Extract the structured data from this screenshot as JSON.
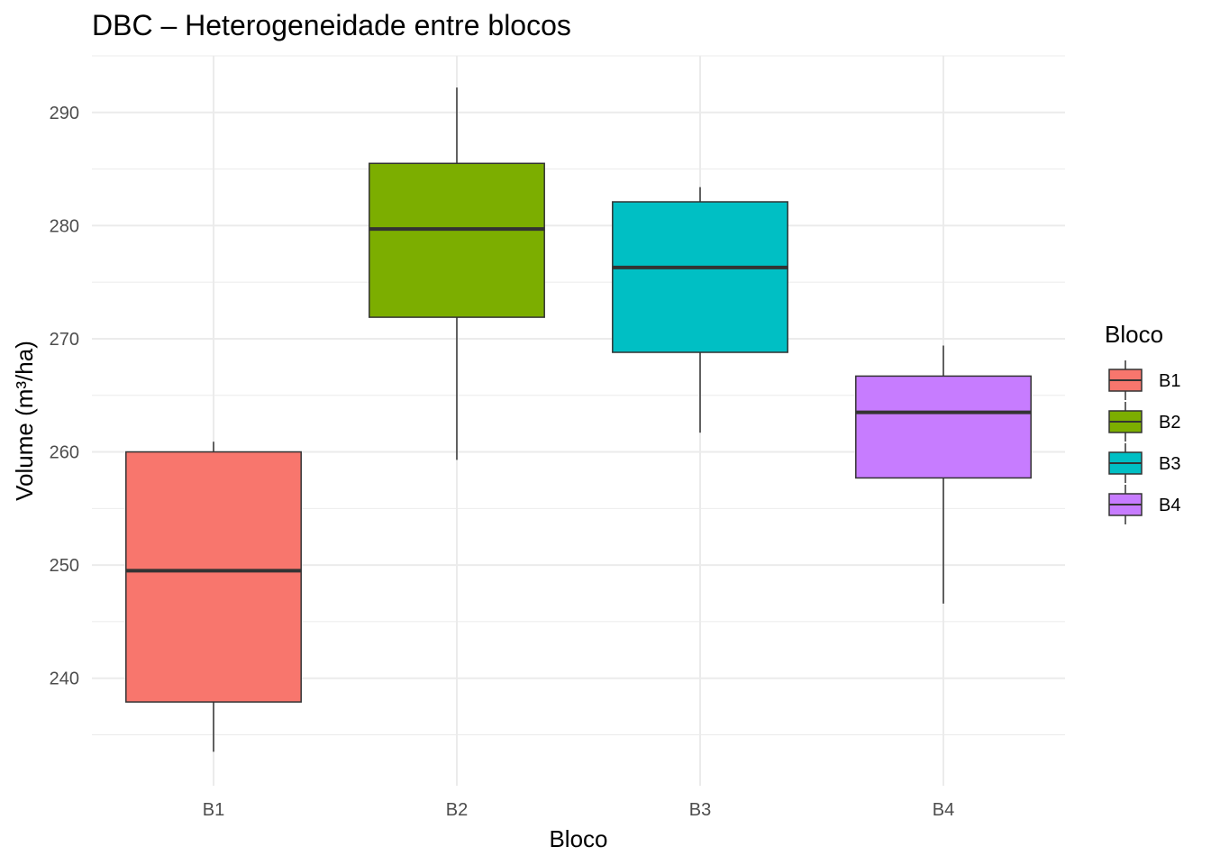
{
  "chart_data": {
    "type": "boxplot",
    "title": "DBC – Heterogeneidade entre blocos",
    "xlabel": "Bloco",
    "ylabel": "Volume (m³/ha)",
    "ylim": [
      230.5,
      295
    ],
    "y_ticks": [
      240,
      250,
      260,
      270,
      280,
      290
    ],
    "categories": [
      "B1",
      "B2",
      "B3",
      "B4"
    ],
    "boxes": [
      {
        "category": "B1",
        "whisker_low": 233.5,
        "q1": 237.9,
        "median": 249.5,
        "q3": 260.0,
        "whisker_high": 260.9,
        "color": "#F8766D"
      },
      {
        "category": "B2",
        "whisker_low": 259.3,
        "q1": 271.9,
        "median": 279.7,
        "q3": 285.5,
        "whisker_high": 292.2,
        "color": "#7CAE00"
      },
      {
        "category": "B3",
        "whisker_low": 261.7,
        "q1": 268.8,
        "median": 276.3,
        "q3": 282.1,
        "whisker_high": 283.4,
        "color": "#00BFC4"
      },
      {
        "category": "B4",
        "whisker_low": 246.6,
        "q1": 257.7,
        "median": 263.5,
        "q3": 266.7,
        "whisker_high": 269.4,
        "color": "#C77CFF"
      }
    ],
    "legend": {
      "title": "Bloco",
      "position": "right",
      "items": [
        {
          "label": "B1",
          "color": "#F8766D"
        },
        {
          "label": "B2",
          "color": "#7CAE00"
        },
        {
          "label": "B3",
          "color": "#00BFC4"
        },
        {
          "label": "B4",
          "color": "#C77CFF"
        }
      ]
    },
    "grid": true,
    "theme": "minimal"
  }
}
